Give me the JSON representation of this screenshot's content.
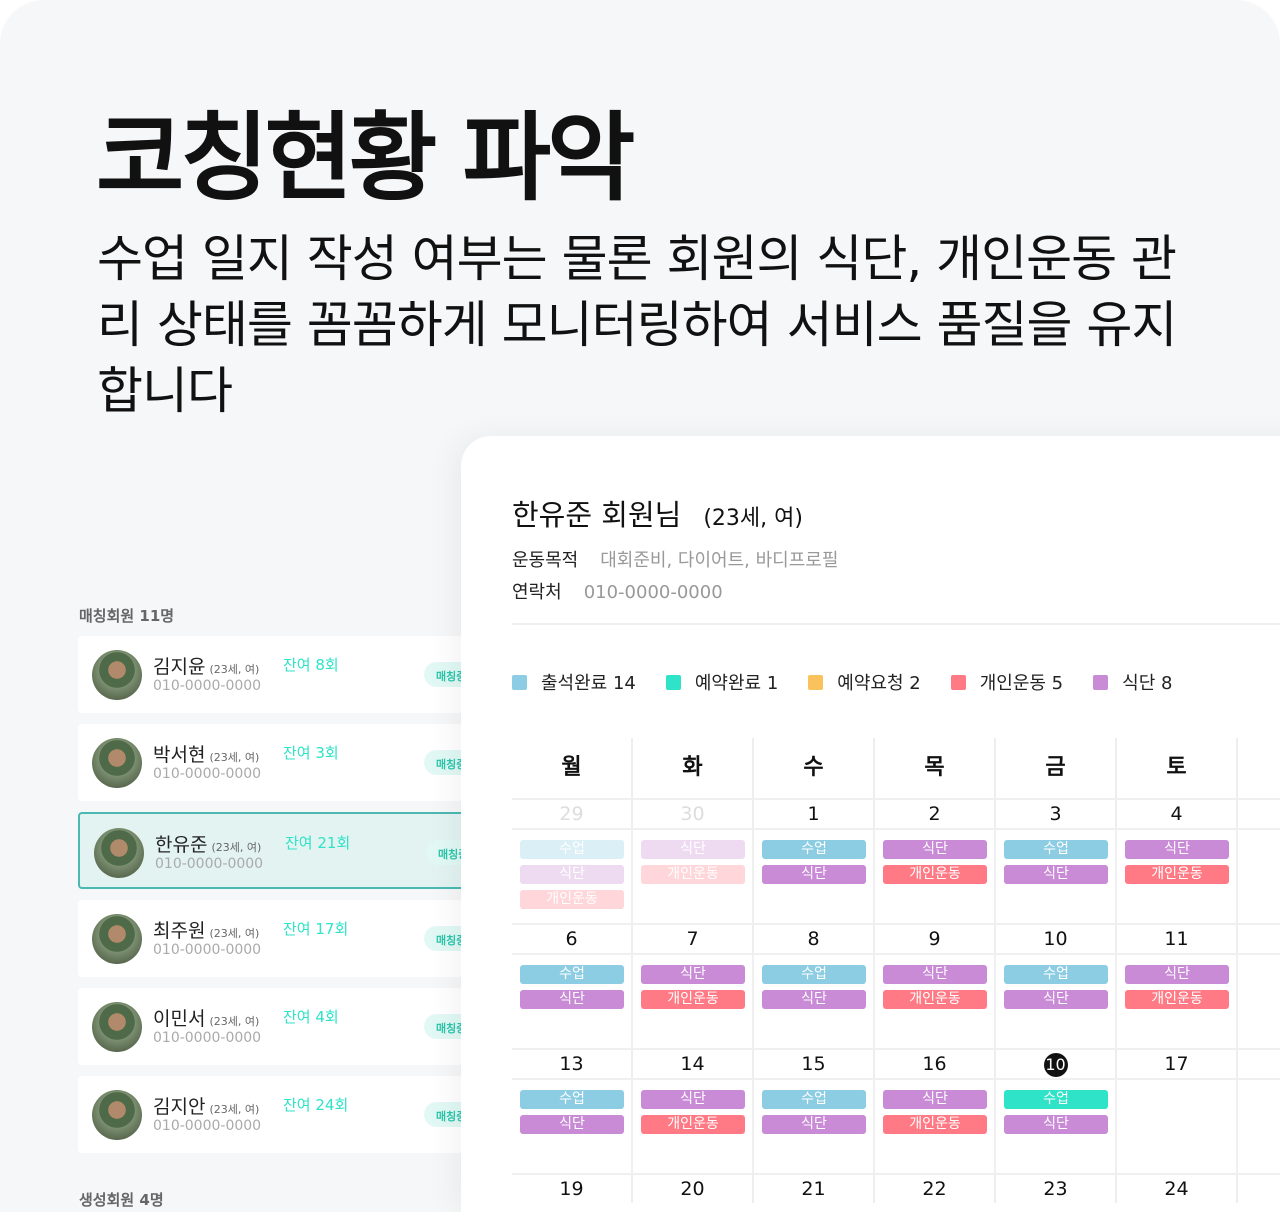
{
  "title": "코칭현황 파악",
  "subtitle": "수업 일지 작성 여부는 물론 회원의 식단, 개인운동 관리 상태를 꼼꼼하게 모니터링하여 서비스 품질을 유지합니다",
  "members": {
    "matched_label": "매칭회원  11명",
    "created_label": "생성회원  4명",
    "items": [
      {
        "name": "김지윤",
        "age": "(23세, 여)",
        "phone": "010-0000-0000",
        "remaining": "잔여 8회",
        "badge": "매칭중"
      },
      {
        "name": "박서현",
        "age": "(23세, 여)",
        "phone": "010-0000-0000",
        "remaining": "잔여 3회",
        "badge": "매칭중"
      },
      {
        "name": "한유준",
        "age": "(23세, 여)",
        "phone": "010-0000-0000",
        "remaining": "잔여 21회",
        "badge": "매칭중",
        "selected": true
      },
      {
        "name": "최주원",
        "age": "(23세, 여)",
        "phone": "010-0000-0000",
        "remaining": "잔여 17회",
        "badge": "매칭중"
      },
      {
        "name": "이민서",
        "age": "(23세, 여)",
        "phone": "010-0000-0000",
        "remaining": "잔여 4회",
        "badge": "매칭중"
      },
      {
        "name": "김지안",
        "age": "(23세, 여)",
        "phone": "010-0000-0000",
        "remaining": "잔여 24회",
        "badge": "매칭중"
      }
    ]
  },
  "detail": {
    "name": "한유준 회원님",
    "age": "(23세, 여)",
    "goal_label": "운동목적",
    "goal": "대회준비, 다이어트, 바디프로필",
    "contact_label": "연락처",
    "contact": "010-0000-0000",
    "legend": [
      {
        "label": "출석완료 14",
        "color": "#8ccde3"
      },
      {
        "label": "예약완료  1",
        "color": "#2ee3c7"
      },
      {
        "label": "예약요청  2",
        "color": "#f9c25c"
      },
      {
        "label": "개인운동  5",
        "color": "#ff7a85"
      },
      {
        "label": "식단  8",
        "color": "#c98ad6"
      }
    ]
  },
  "event_colors": {
    "수업": "#8ccde3",
    "수업-reserved": "#2ee3c7",
    "식단": "#c98ad6",
    "개인운동": "#ff7a85"
  },
  "calendar": {
    "weekdays": [
      "월",
      "화",
      "수",
      "목",
      "금",
      "토"
    ],
    "weeks": [
      [
        {
          "d": "29",
          "muted": true,
          "ev": [
            "수업",
            "식단",
            "개인운동"
          ]
        },
        {
          "d": "30",
          "muted": true,
          "ev": [
            "식단",
            "개인운동"
          ]
        },
        {
          "d": "1",
          "ev": [
            "수업",
            "식단"
          ]
        },
        {
          "d": "2",
          "ev": [
            "식단",
            "개인운동"
          ]
        },
        {
          "d": "3",
          "ev": [
            "수업",
            "식단"
          ]
        },
        {
          "d": "4",
          "ev": [
            "식단",
            "개인운동"
          ]
        }
      ],
      [
        {
          "d": "6",
          "ev": [
            "수업",
            "식단"
          ]
        },
        {
          "d": "7",
          "ev": [
            "식단",
            "개인운동"
          ]
        },
        {
          "d": "8",
          "ev": [
            "수업",
            "식단"
          ]
        },
        {
          "d": "9",
          "ev": [
            "식단",
            "개인운동"
          ]
        },
        {
          "d": "10",
          "ev": [
            "수업",
            "식단"
          ]
        },
        {
          "d": "11",
          "ev": [
            "식단",
            "개인운동"
          ]
        }
      ],
      [
        {
          "d": "13",
          "ev": [
            "수업",
            "식단"
          ]
        },
        {
          "d": "14",
          "ev": [
            "식단",
            "개인운동"
          ]
        },
        {
          "d": "15",
          "ev": [
            "수업",
            "식단"
          ]
        },
        {
          "d": "16",
          "ev": [
            "식단",
            "개인운동"
          ]
        },
        {
          "d": "10",
          "today": true,
          "ev": [
            "수업-reserved",
            "식단"
          ]
        },
        {
          "d": "17",
          "ev": []
        }
      ],
      [
        {
          "d": "19",
          "ev": []
        },
        {
          "d": "20",
          "ev": []
        },
        {
          "d": "21",
          "ev": []
        },
        {
          "d": "22",
          "ev": []
        },
        {
          "d": "23",
          "ev": []
        },
        {
          "d": "24",
          "ev": []
        }
      ]
    ]
  }
}
